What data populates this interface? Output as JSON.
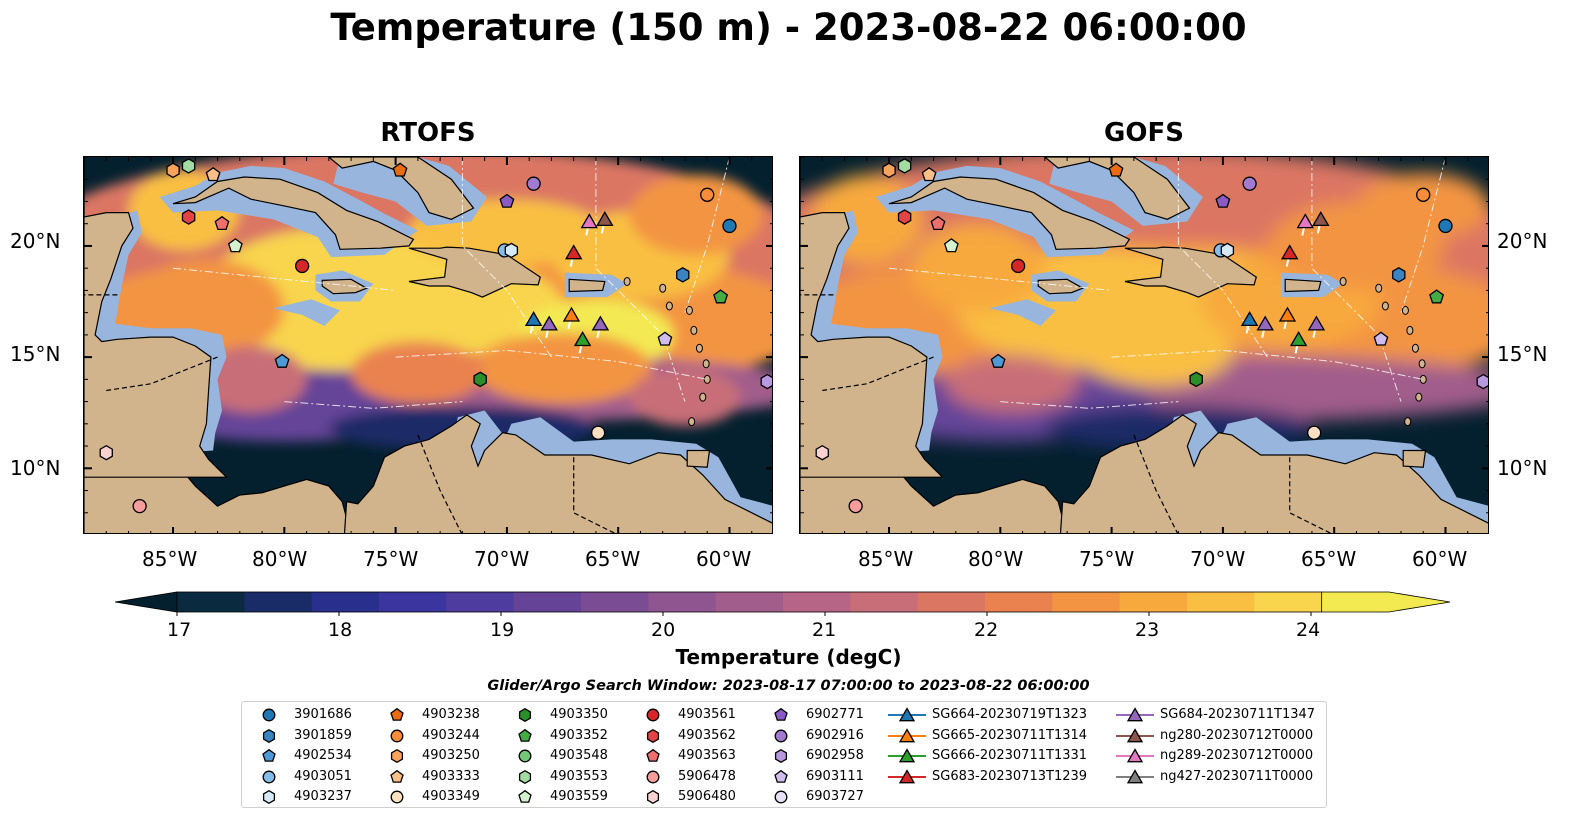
{
  "title": "Temperature (150 m) - 2023-08-22 06:00:00",
  "panels": [
    {
      "title": "RTOFS"
    },
    {
      "title": "GOFS"
    }
  ],
  "axes": {
    "lat_labels": [
      "20°N",
      "15°N",
      "10°N"
    ],
    "lon_labels": [
      "85°W",
      "80°W",
      "75°W",
      "70°W",
      "65°W",
      "60°W"
    ]
  },
  "colorbar": {
    "title": "Temperature (degC)",
    "ticks": [
      "17",
      "18",
      "19",
      "20",
      "21",
      "22",
      "23",
      "24"
    ],
    "range": [
      16.75,
      24.5
    ],
    "colors": [
      "#04202e",
      "#0a2a3f",
      "#1a2c67",
      "#292f8d",
      "#3b359f",
      "#4e3d9e",
      "#654498",
      "#7a4c93",
      "#8e5590",
      "#a15d8c",
      "#b66586",
      "#c86e78",
      "#db7663",
      "#ea8250",
      "#f39443",
      "#f8a93d",
      "#f9bf43",
      "#f8d54d",
      "#f3ea52"
    ]
  },
  "search_window": "Glider/Argo Search Window: 2023-08-17 07:00:00 to 2023-08-22 06:00:00",
  "legend": [
    {
      "label": "3901686",
      "marker": "circle",
      "color": "#1f77b4"
    },
    {
      "label": "3901859",
      "marker": "hexagon",
      "color": "#3a85c1"
    },
    {
      "label": "4902534",
      "marker": "pentagon",
      "color": "#4f9ad6"
    },
    {
      "label": "4903051",
      "marker": "circle",
      "color": "#86bde6"
    },
    {
      "label": "4903237",
      "marker": "hexagon",
      "color": "#d5e9f7"
    },
    {
      "label": "4903238",
      "marker": "pentagon",
      "color": "#e96c10"
    },
    {
      "label": "4903244",
      "marker": "circle",
      "color": "#f78c3a"
    },
    {
      "label": "4903250",
      "marker": "hexagon",
      "color": "#f9a45e"
    },
    {
      "label": "4903333",
      "marker": "pentagon",
      "color": "#fbc08a"
    },
    {
      "label": "4903349",
      "marker": "circle",
      "color": "#fde0c2"
    },
    {
      "label": "4903350",
      "marker": "hexagon",
      "color": "#2a8f2a"
    },
    {
      "label": "4903352",
      "marker": "pentagon",
      "color": "#45ac45"
    },
    {
      "label": "4903548",
      "marker": "circle",
      "color": "#74c776"
    },
    {
      "label": "4903553",
      "marker": "hexagon",
      "color": "#a2dca0"
    },
    {
      "label": "4903559",
      "marker": "pentagon",
      "color": "#d5f2cf"
    },
    {
      "label": "4903561",
      "marker": "circle",
      "color": "#d62728"
    },
    {
      "label": "4903562",
      "marker": "hexagon",
      "color": "#e34344"
    },
    {
      "label": "4903563",
      "marker": "pentagon",
      "color": "#ef6f6f"
    },
    {
      "label": "5906478",
      "marker": "circle",
      "color": "#f59c9c"
    },
    {
      "label": "5906480",
      "marker": "hexagon",
      "color": "#fbd2d2"
    },
    {
      "label": "6902771",
      "marker": "pentagon",
      "color": "#8a5bc5"
    },
    {
      "label": "6902916",
      "marker": "circle",
      "color": "#a07bd0"
    },
    {
      "label": "6902958",
      "marker": "hexagon",
      "color": "#b899de"
    },
    {
      "label": "6903111",
      "marker": "pentagon",
      "color": "#d0bdec"
    },
    {
      "label": "6903727",
      "marker": "circle",
      "color": "#e9e0f7"
    },
    {
      "label": "SG664-20230719T1323",
      "marker": "triangle",
      "color": "#1f77b4"
    },
    {
      "label": "SG665-20230711T1314",
      "marker": "triangle",
      "color": "#ff7f0e"
    },
    {
      "label": "SG666-20230711T1331",
      "marker": "triangle",
      "color": "#2ca02c"
    },
    {
      "label": "SG683-20230713T1239",
      "marker": "triangle",
      "color": "#d62728"
    },
    {
      "label": "SG684-20230711T1347",
      "marker": "triangle",
      "color": "#9467bd"
    },
    {
      "label": "ng280-20230712T0000",
      "marker": "triangle",
      "color": "#8c564b"
    },
    {
      "label": "ng289-20230712T0000",
      "marker": "triangle",
      "color": "#e377c2"
    },
    {
      "label": "ng427-20230711T0000",
      "marker": "triangle",
      "color": "#7f7f7f"
    }
  ],
  "platforms": [
    {
      "lon": -60.0,
      "lat": 20.9,
      "legend": 0
    },
    {
      "lon": -62.1,
      "lat": 18.7,
      "legend": 1
    },
    {
      "lon": -60.4,
      "lat": 17.7,
      "legend": 11
    },
    {
      "lon": -70.1,
      "lat": 19.8,
      "legend": 3
    },
    {
      "lon": -69.8,
      "lat": 19.8,
      "legend": 4
    },
    {
      "lon": -79.2,
      "lat": 19.1,
      "legend": 15
    },
    {
      "lon": -84.3,
      "lat": 21.3,
      "legend": 16
    },
    {
      "lon": -82.8,
      "lat": 21.0,
      "legend": 17
    },
    {
      "lon": -82.2,
      "lat": 20.0,
      "legend": 14
    },
    {
      "lon": -61.0,
      "lat": 22.3,
      "legend": 6
    },
    {
      "lon": -68.8,
      "lat": 22.8,
      "legend": 21
    },
    {
      "lon": -70.0,
      "lat": 22.0,
      "legend": 20
    },
    {
      "lon": -58.3,
      "lat": 13.9,
      "legend": 22
    },
    {
      "lon": -62.9,
      "lat": 15.8,
      "legend": 23
    },
    {
      "lon": -71.2,
      "lat": 14.0,
      "legend": 10
    },
    {
      "lon": -80.1,
      "lat": 14.8,
      "legend": 2
    },
    {
      "lon": -65.9,
      "lat": 11.6,
      "legend": 9
    },
    {
      "lon": -88.0,
      "lat": 10.7,
      "legend": 19
    },
    {
      "lon": -86.5,
      "lat": 8.3,
      "legend": 18
    },
    {
      "lon": -85.0,
      "lat": 23.4,
      "legend": 7
    },
    {
      "lon": -83.2,
      "lat": 23.2,
      "legend": 8
    },
    {
      "lon": -84.3,
      "lat": 23.6,
      "legend": 13
    },
    {
      "lon": -74.8,
      "lat": 23.4,
      "legend": 5
    }
  ],
  "gliders": [
    {
      "lon": -68.8,
      "lat": 16.7,
      "legend": 25
    },
    {
      "lon": -68.1,
      "lat": 16.5,
      "legend": 29
    },
    {
      "lon": -67.1,
      "lat": 16.9,
      "legend": 26
    },
    {
      "lon": -66.6,
      "lat": 15.8,
      "legend": 27
    },
    {
      "lon": -65.8,
      "lat": 16.5,
      "legend": 29
    },
    {
      "lon": -67.0,
      "lat": 19.7,
      "legend": 28
    },
    {
      "lon": -66.3,
      "lat": 21.1,
      "legend": 31
    },
    {
      "lon": -65.6,
      "lat": 21.2,
      "legend": 30
    }
  ],
  "map_extent": {
    "lon": [
      -89,
      -58
    ],
    "lat": [
      7,
      24
    ]
  },
  "colors": {
    "land": "#d1b48c",
    "shelf": "#98b5de"
  }
}
